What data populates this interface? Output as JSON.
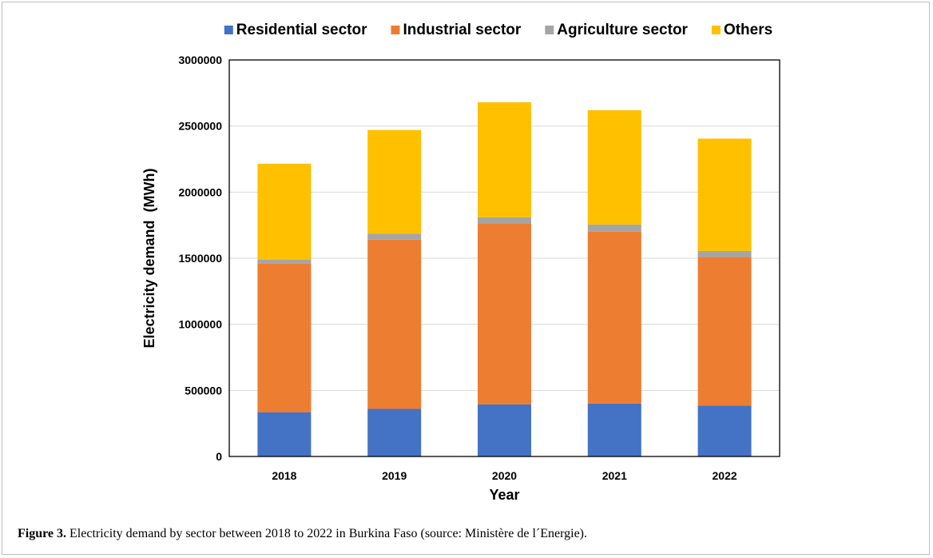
{
  "caption": {
    "label": "Figure 3.",
    "text": "Electricity demand by sector between 2018 to 2022 in Burkina Faso (source: Ministère de l´Energie)."
  },
  "chart_data": {
    "type": "bar",
    "stacked": true,
    "categories": [
      "2018",
      "2019",
      "2020",
      "2021",
      "2022"
    ],
    "series": [
      {
        "name": "Residential sector",
        "color": "#4472c4",
        "values": [
          335000,
          360000,
          395000,
          400000,
          385000
        ]
      },
      {
        "name": "Industrial sector",
        "color": "#ed7d31",
        "values": [
          1125000,
          1280000,
          1370000,
          1300000,
          1125000
        ]
      },
      {
        "name": "Agriculture sector",
        "color": "#a5a5a5",
        "values": [
          30000,
          45000,
          45000,
          55000,
          45000
        ]
      },
      {
        "name": "Others",
        "color": "#ffc000",
        "values": [
          725000,
          785000,
          870000,
          865000,
          850000
        ]
      }
    ],
    "xlabel": "Year",
    "ylabel": "Electricity demand  (MWh)",
    "ylim": [
      0,
      3000000
    ],
    "yticks": [
      "0",
      "500000",
      "1000000",
      "1500000",
      "2000000",
      "2500000",
      "3000000"
    ],
    "grid": true,
    "legend_position": "top"
  }
}
